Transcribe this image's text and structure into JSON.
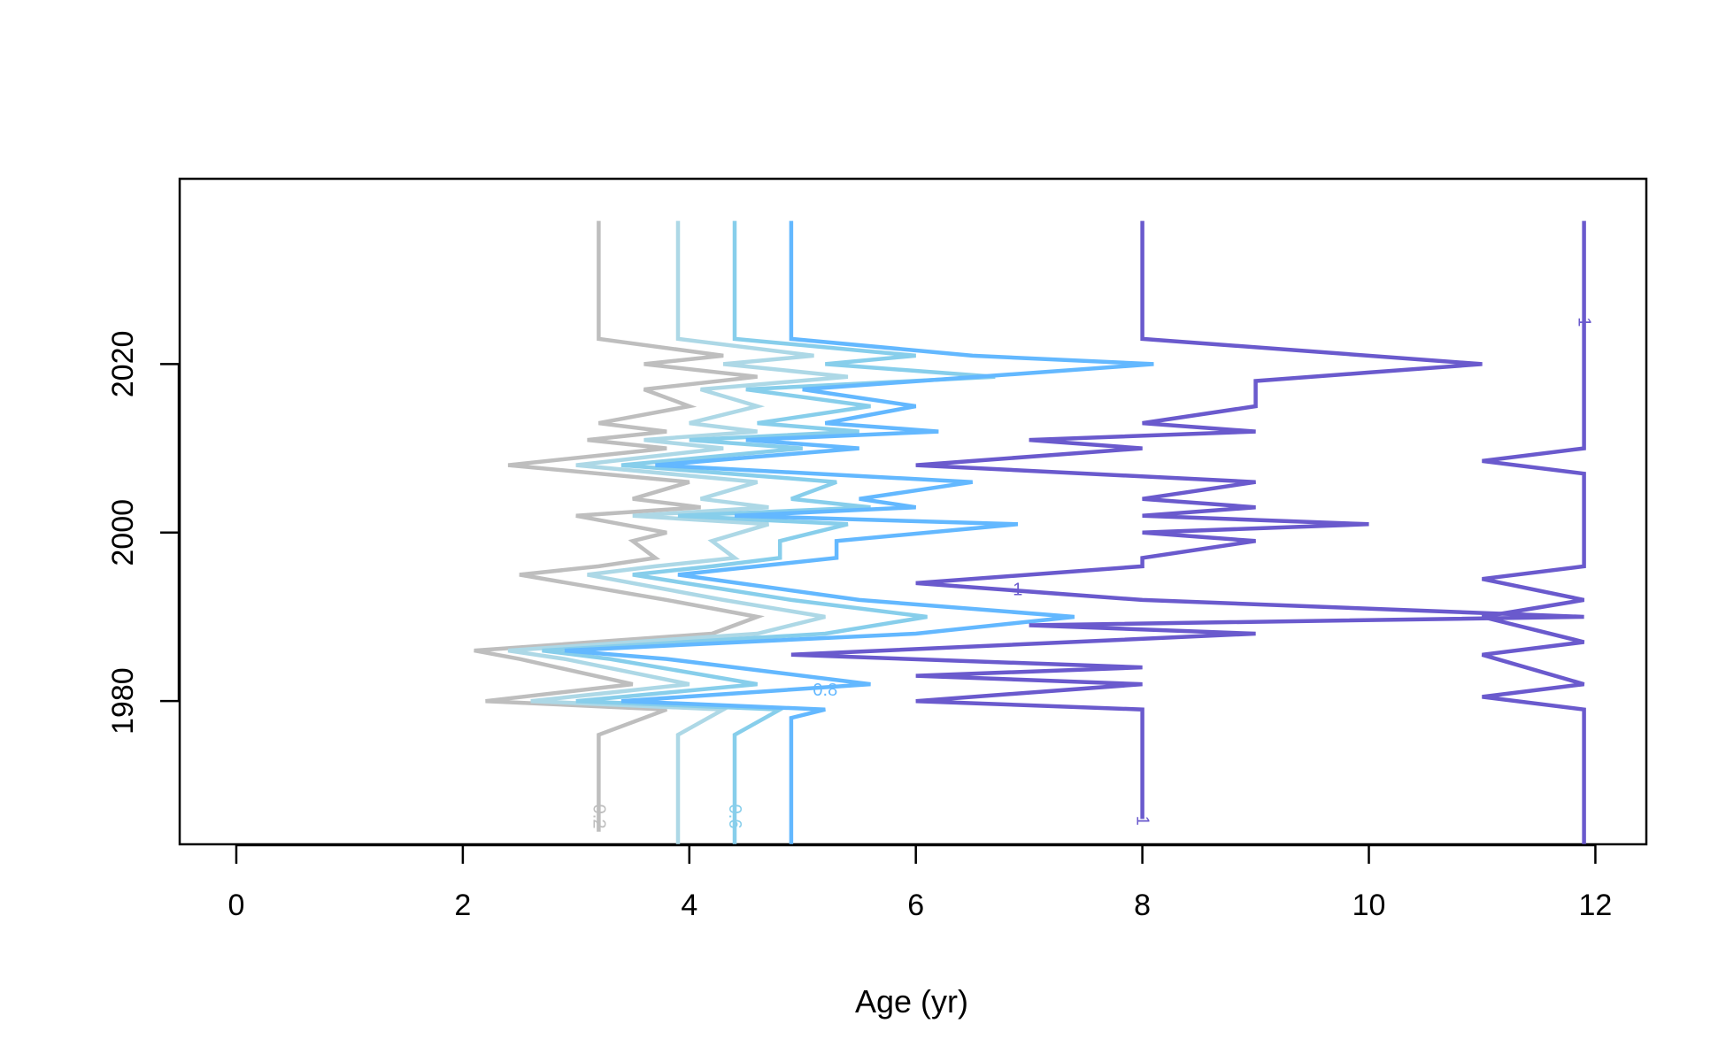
{
  "chart_data": {
    "type": "line",
    "title": "",
    "xlabel": "Age (yr)",
    "ylabel": "",
    "xlim": [
      -0.5,
      12.45
    ],
    "ylim": [
      1963,
      2042
    ],
    "x_ticks": [
      0,
      2,
      4,
      6,
      8,
      10,
      12
    ],
    "y_ticks": [
      1980,
      2000,
      2020
    ],
    "grid": false,
    "legend": "none",
    "series": [
      {
        "color": "#bebebe",
        "points": [
          [
            3.2,
            1964.5
          ],
          [
            3.2,
            1976
          ],
          [
            3.8,
            1979
          ],
          [
            2.2,
            1980
          ],
          [
            3.5,
            1982
          ],
          [
            2.5,
            1985
          ],
          [
            2.1,
            1986
          ],
          [
            4.2,
            1988
          ],
          [
            4.6,
            1990
          ],
          [
            3.8,
            1992
          ],
          [
            2.5,
            1995
          ],
          [
            3.2,
            1996
          ],
          [
            3.7,
            1997
          ],
          [
            3.5,
            1999
          ],
          [
            3.8,
            2000
          ],
          [
            3.0,
            2002
          ],
          [
            4.1,
            2003
          ],
          [
            3.5,
            2004
          ],
          [
            4.0,
            2006
          ],
          [
            2.4,
            2008
          ],
          [
            3.8,
            2010
          ],
          [
            3.1,
            2011
          ],
          [
            3.8,
            2012
          ],
          [
            3.2,
            2013
          ],
          [
            4.0,
            2015
          ],
          [
            3.6,
            2017
          ],
          [
            4.6,
            2018.5
          ],
          [
            3.6,
            2020
          ],
          [
            4.3,
            2021
          ],
          [
            3.2,
            2023
          ],
          [
            3.2,
            2037
          ]
        ]
      },
      {
        "color": "#add8e6",
        "points": [
          [
            3.9,
            1963
          ],
          [
            3.9,
            1976
          ],
          [
            4.3,
            1979
          ],
          [
            2.6,
            1980
          ],
          [
            4.0,
            1982
          ],
          [
            2.9,
            1985
          ],
          [
            2.4,
            1986
          ],
          [
            4.6,
            1988
          ],
          [
            5.2,
            1990
          ],
          [
            4.3,
            1992
          ],
          [
            3.1,
            1995
          ],
          [
            3.7,
            1996
          ],
          [
            4.4,
            1997
          ],
          [
            4.2,
            1999
          ],
          [
            4.7,
            2001
          ],
          [
            3.5,
            2002
          ],
          [
            4.7,
            2003
          ],
          [
            4.1,
            2004
          ],
          [
            4.6,
            2006
          ],
          [
            3.0,
            2008
          ],
          [
            4.3,
            2010
          ],
          [
            3.6,
            2011
          ],
          [
            4.6,
            2012
          ],
          [
            4.0,
            2013
          ],
          [
            4.6,
            2015
          ],
          [
            4.1,
            2017
          ],
          [
            5.4,
            2018.5
          ],
          [
            4.3,
            2020
          ],
          [
            5.1,
            2021
          ],
          [
            3.9,
            2023
          ],
          [
            3.9,
            2037
          ]
        ]
      },
      {
        "color": "#87ceeb",
        "points": [
          [
            4.4,
            1963
          ],
          [
            4.4,
            1976
          ],
          [
            4.8,
            1979
          ],
          [
            3.0,
            1980
          ],
          [
            4.6,
            1982
          ],
          [
            3.3,
            1985
          ],
          [
            2.7,
            1986
          ],
          [
            5.2,
            1988
          ],
          [
            6.1,
            1990
          ],
          [
            4.9,
            1992
          ],
          [
            3.5,
            1995
          ],
          [
            4.2,
            1996
          ],
          [
            4.8,
            1997
          ],
          [
            4.8,
            1999
          ],
          [
            5.4,
            2001
          ],
          [
            3.9,
            2002
          ],
          [
            5.6,
            2003
          ],
          [
            4.9,
            2004
          ],
          [
            5.3,
            2006
          ],
          [
            3.4,
            2008
          ],
          [
            5.0,
            2010
          ],
          [
            4.0,
            2011
          ],
          [
            5.5,
            2012
          ],
          [
            4.6,
            2013
          ],
          [
            5.6,
            2015
          ],
          [
            4.5,
            2017
          ],
          [
            6.7,
            2018.5
          ],
          [
            5.2,
            2020
          ],
          [
            6.0,
            2021
          ],
          [
            4.4,
            2023
          ],
          [
            4.4,
            2037
          ]
        ]
      },
      {
        "color": "#63b8ff",
        "points": [
          [
            4.9,
            1963
          ],
          [
            4.9,
            1978
          ],
          [
            5.2,
            1979
          ],
          [
            3.4,
            1980
          ],
          [
            5.6,
            1982
          ],
          [
            3.8,
            1985
          ],
          [
            2.9,
            1986
          ],
          [
            6.0,
            1988
          ],
          [
            7.4,
            1990
          ],
          [
            5.5,
            1992
          ],
          [
            3.9,
            1995
          ],
          [
            4.6,
            1996
          ],
          [
            5.3,
            1997
          ],
          [
            5.3,
            1999
          ],
          [
            6.9,
            2001
          ],
          [
            4.4,
            2002
          ],
          [
            6.0,
            2003
          ],
          [
            5.5,
            2004
          ],
          [
            6.5,
            2006
          ],
          [
            3.7,
            2008
          ],
          [
            5.5,
            2010
          ],
          [
            4.5,
            2011
          ],
          [
            6.2,
            2012
          ],
          [
            5.2,
            2013
          ],
          [
            6.0,
            2015
          ],
          [
            5.0,
            2017
          ],
          [
            8.1,
            2020
          ],
          [
            6.5,
            2021
          ],
          [
            4.9,
            2023
          ],
          [
            4.9,
            2037
          ]
        ]
      },
      {
        "color": "#6a5acd",
        "points": [
          [
            8.0,
            1966
          ],
          [
            8.0,
            1979
          ],
          [
            6.0,
            1980
          ],
          [
            8.0,
            1982
          ],
          [
            6.0,
            1983
          ],
          [
            8.0,
            1984
          ],
          [
            4.9,
            1985.5
          ],
          [
            9.0,
            1988
          ],
          [
            7.0,
            1989
          ],
          [
            11.9,
            1990
          ],
          [
            8.0,
            1992
          ],
          [
            6.0,
            1994
          ],
          [
            8.0,
            1996
          ],
          [
            8.0,
            1997
          ],
          [
            9.0,
            1999
          ],
          [
            8.0,
            2000
          ],
          [
            10.0,
            2001
          ],
          [
            8.0,
            2002
          ],
          [
            9.0,
            2003
          ],
          [
            8.0,
            2004
          ],
          [
            9.0,
            2006
          ],
          [
            6.0,
            2008
          ],
          [
            8.0,
            2010
          ],
          [
            7.0,
            2011
          ],
          [
            9.0,
            2012
          ],
          [
            8.0,
            2013
          ],
          [
            9.0,
            2015
          ],
          [
            9.0,
            2018
          ],
          [
            10.0,
            2019
          ],
          [
            11.0,
            2020
          ],
          [
            8.0,
            2023
          ],
          [
            8.0,
            2037
          ]
        ]
      },
      {
        "color": "#6a5acd",
        "points": [
          [
            11.9,
            1963
          ],
          [
            11.9,
            1979
          ],
          [
            11.0,
            1980.5
          ],
          [
            11.9,
            1982
          ],
          [
            11.0,
            1985.5
          ],
          [
            11.9,
            1987
          ],
          [
            11.0,
            1990
          ],
          [
            11.9,
            1992
          ],
          [
            11.0,
            1994.5
          ],
          [
            11.9,
            1996
          ],
          [
            11.9,
            2007
          ],
          [
            11.0,
            2008.5
          ],
          [
            11.9,
            2010
          ],
          [
            11.9,
            2018
          ],
          [
            11.9,
            2021
          ],
          [
            11.9,
            2037
          ]
        ]
      }
    ],
    "contour_labels": [
      {
        "text": "0.2",
        "x": 3.2,
        "y": 1966.3,
        "color": "#bebebe",
        "rotation": 90
      },
      {
        "text": "0.6",
        "x": 4.4,
        "y": 1966.3,
        "color": "#87ceeb",
        "rotation": 90
      },
      {
        "text": "0.8",
        "x": 5.2,
        "y": 1981.3,
        "color": "#63b8ff",
        "rotation": 0
      },
      {
        "text": "1",
        "x": 6.9,
        "y": 1993.2,
        "color": "#6a5acd",
        "rotation": 0
      },
      {
        "text": "1",
        "x": 8.0,
        "y": 1965.8,
        "color": "#6a5acd",
        "rotation": 90
      },
      {
        "text": "1",
        "x": 11.9,
        "y": 2025,
        "color": "#6a5acd",
        "rotation": 90
      }
    ]
  }
}
